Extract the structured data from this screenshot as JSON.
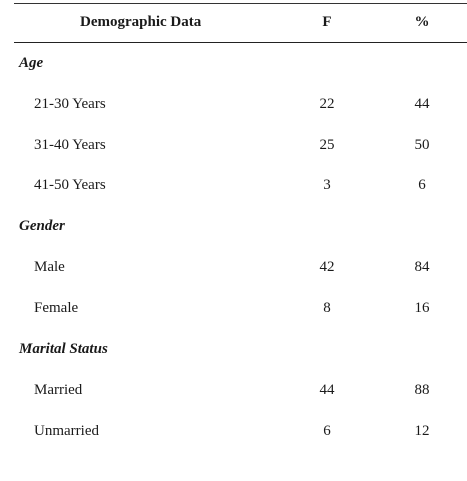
{
  "header": {
    "demographic": "Demographic Data",
    "f": "F",
    "pct": "%"
  },
  "groups": [
    {
      "label": "Age",
      "rows": [
        {
          "label": "21-30 Years",
          "f": "22",
          "pct": "44"
        },
        {
          "label": "31-40 Years",
          "f": "25",
          "pct": "50"
        },
        {
          "label": "41-50 Years",
          "f": "3",
          "pct": "6"
        }
      ]
    },
    {
      "label": "Gender",
      "rows": [
        {
          "label": "Male",
          "f": "42",
          "pct": "84"
        },
        {
          "label": "Female",
          "f": "8",
          "pct": "16"
        }
      ]
    },
    {
      "label": "Marital Status",
      "rows": [
        {
          "label": "Married",
          "f": "44",
          "pct": "88"
        },
        {
          "label": "Unmarried",
          "f": "6",
          "pct": "12"
        }
      ]
    }
  ]
}
